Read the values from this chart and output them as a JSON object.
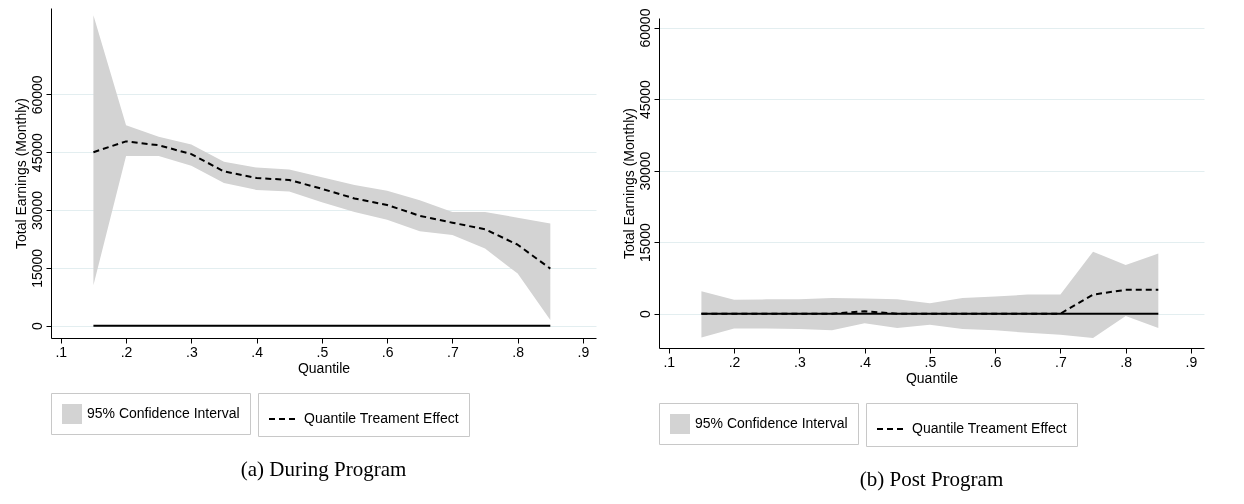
{
  "chart_data": [
    {
      "type": "line",
      "title": "(a) During Program",
      "xlabel": "Quantile",
      "ylabel": "Total Earnings (Monthly)",
      "annotations": [
        "95% Confidence Interval"
      ],
      "x": [
        0.15,
        0.2,
        0.25,
        0.3,
        0.35,
        0.4,
        0.45,
        0.5,
        0.55,
        0.6,
        0.65,
        0.7,
        0.75,
        0.8,
        0.85
      ],
      "series": [
        {
          "name": "Quantile Treament Effect",
          "type": "line",
          "color": "#000000",
          "line_style": "dashed",
          "values": [
            45000,
            47800,
            46800,
            44500,
            40000,
            38300,
            37800,
            35500,
            33000,
            31300,
            28500,
            26700,
            25000,
            21000,
            14800
          ],
          "lower": [
            10500,
            44000,
            44000,
            41500,
            37000,
            35200,
            34800,
            32000,
            29500,
            27500,
            24500,
            23500,
            20000,
            13500,
            1500
          ],
          "upper": [
            80500,
            52000,
            49000,
            47000,
            42500,
            41000,
            40500,
            38500,
            36500,
            35000,
            32500,
            29500,
            29500,
            28000,
            26500
          ]
        },
        {
          "type": "line",
          "color": "#000000",
          "line_style": "solid",
          "values": [
            0,
            0,
            0,
            0,
            0,
            0,
            0,
            0,
            0,
            0,
            0,
            0,
            0,
            0,
            0
          ]
        }
      ],
      "xlim": [
        0.085,
        0.92
      ],
      "xticks": [
        {
          "value": 0.1,
          "label": ".1"
        },
        {
          "value": 0.2,
          "label": ".2"
        },
        {
          "value": 0.3,
          "label": ".3"
        },
        {
          "value": 0.4,
          "label": ".4"
        },
        {
          "value": 0.5,
          "label": ".5"
        },
        {
          "value": 0.6,
          "label": ".6"
        },
        {
          "value": 0.7,
          "label": ".7"
        },
        {
          "value": 0.8,
          "label": ".8"
        },
        {
          "value": 0.9,
          "label": ".9"
        }
      ],
      "ylim": [
        -3200,
        82400
      ],
      "yticks": [
        0,
        15000,
        30000,
        45000,
        60000
      ],
      "grid": "y",
      "legend": "bottom"
    },
    {
      "type": "line",
      "title": "(b) Post Program",
      "xlabel": "Quantile",
      "ylabel": "Total Earnings (Monthly)",
      "annotations": [
        "95% Confidence Interval"
      ],
      "x": [
        0.15,
        0.2,
        0.25,
        0.3,
        0.35,
        0.4,
        0.45,
        0.5,
        0.55,
        0.6,
        0.65,
        0.7,
        0.75,
        0.8,
        0.85
      ],
      "series": [
        {
          "name": "Quantile Treament Effect",
          "type": "line",
          "color": "#000000",
          "line_style": "dashed",
          "values": [
            0,
            0,
            0,
            0,
            0,
            500,
            0,
            0,
            0,
            0,
            0,
            0,
            4000,
            5000,
            5000
          ],
          "lower": [
            -5000,
            -3100,
            -3100,
            -3200,
            -3500,
            -2000,
            -3000,
            -2300,
            -3200,
            -3500,
            -4000,
            -4400,
            -5100,
            -500,
            -3000
          ],
          "upper": [
            4700,
            2900,
            3000,
            3000,
            3300,
            3200,
            3000,
            2200,
            3300,
            3600,
            4000,
            4000,
            13000,
            10200,
            12600
          ]
        },
        {
          "type": "line",
          "color": "#000000",
          "line_style": "solid",
          "values": [
            0,
            0,
            0,
            0,
            0,
            0,
            0,
            0,
            0,
            0,
            0,
            0,
            0,
            0,
            0
          ]
        }
      ],
      "xlim": [
        0.085,
        0.92
      ],
      "xticks": [
        {
          "value": 0.1,
          "label": ".1"
        },
        {
          "value": 0.2,
          "label": ".2"
        },
        {
          "value": 0.3,
          "label": ".3"
        },
        {
          "value": 0.4,
          "label": ".4"
        },
        {
          "value": 0.5,
          "label": ".5"
        },
        {
          "value": 0.6,
          "label": ".6"
        },
        {
          "value": 0.7,
          "label": ".7"
        },
        {
          "value": 0.8,
          "label": ".8"
        },
        {
          "value": 0.9,
          "label": ".9"
        }
      ],
      "ylim": [
        -7200,
        62000
      ],
      "yticks": [
        0,
        15000,
        30000,
        45000,
        60000
      ],
      "grid": "y",
      "legend": "bottom"
    }
  ]
}
